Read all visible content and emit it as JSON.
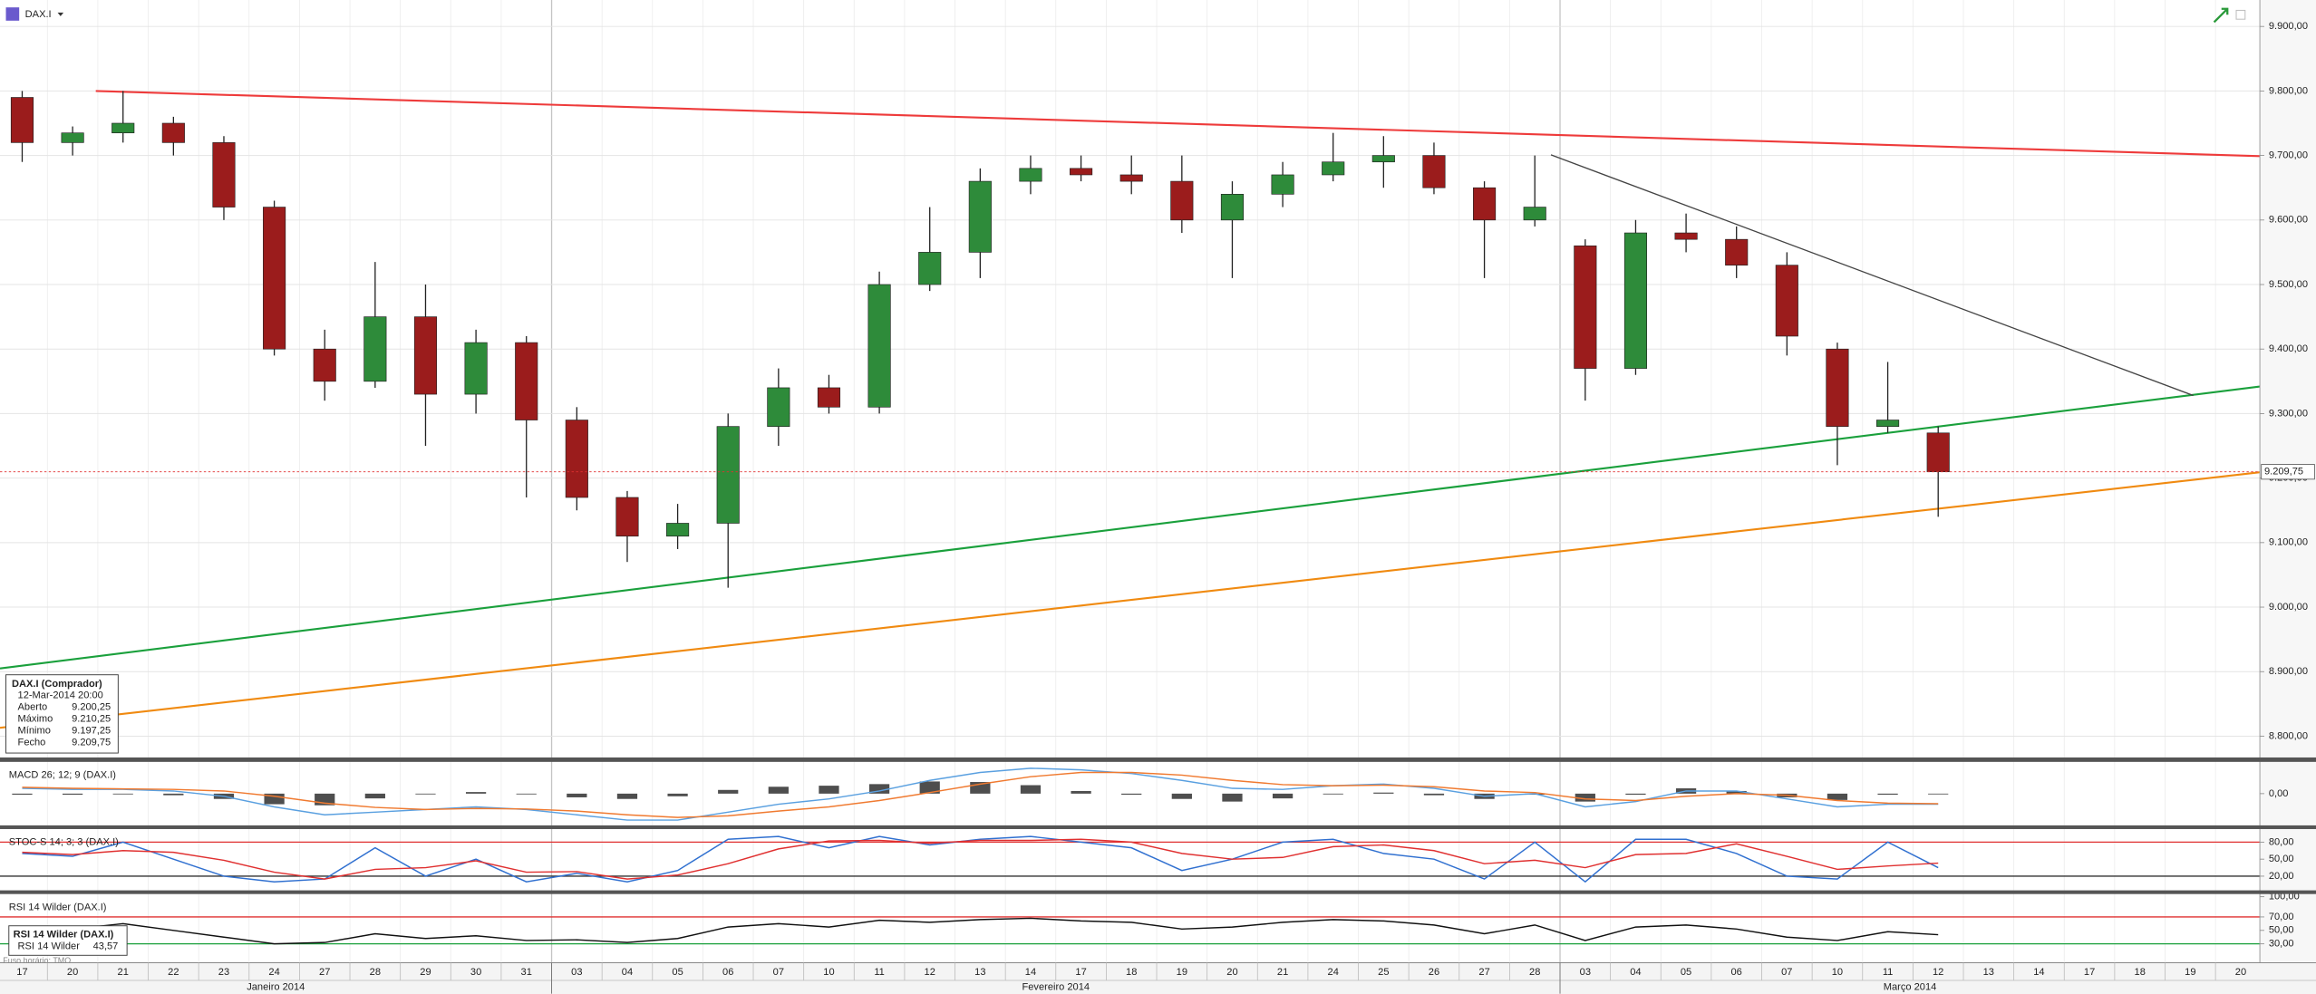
{
  "header": {
    "symbol": "DAX.I",
    "timezone": "Fuso horário: TMO"
  },
  "chart_data": [
    {
      "type": "candlestick",
      "panel": "main",
      "xlim": [
        -0.44,
        44.38
      ],
      "ylim": [
        8767,
        9941
      ],
      "categories": [
        "17",
        "20",
        "21",
        "22",
        "23",
        "24",
        "27",
        "28",
        "29",
        "30",
        "31",
        "03",
        "04",
        "05",
        "06",
        "07",
        "10",
        "11",
        "12",
        "13",
        "14",
        "17",
        "18",
        "19",
        "20",
        "21",
        "24",
        "25",
        "26",
        "27",
        "28",
        "03",
        "04",
        "05",
        "06",
        "07",
        "10",
        "11",
        "12",
        "13",
        "14",
        "17",
        "18",
        "19",
        "20"
      ],
      "months": [
        {
          "name": "Janeiro 2014",
          "start": 0
        },
        {
          "name": "Fevereiro 2014",
          "start": 11
        },
        {
          "name": "Março 2014",
          "start": 31
        }
      ],
      "up_color": "#2e8b3a",
      "down_color": "#9b1c1c",
      "grid": true,
      "open": [
        9790,
        9720,
        9735,
        9750,
        9720,
        9620,
        9400,
        9350,
        9450,
        9330,
        9410,
        9290,
        9170,
        9110,
        9130,
        9280,
        9340,
        9310,
        9500,
        9550,
        9660,
        9680,
        9670,
        9660,
        9600,
        9640,
        9670,
        9690,
        9700,
        9650,
        9600,
        9560,
        9370,
        9580,
        9570,
        9530,
        9400,
        9280,
        9270,
        null,
        null,
        null,
        null,
        null,
        null
      ],
      "high": [
        9800,
        9745,
        9800,
        9760,
        9730,
        9630,
        9430,
        9535,
        9500,
        9430,
        9420,
        9310,
        9180,
        9160,
        9300,
        9370,
        9360,
        9520,
        9620,
        9680,
        9700,
        9700,
        9700,
        9700,
        9660,
        9690,
        9735,
        9730,
        9720,
        9660,
        9700,
        9570,
        9600,
        9610,
        9590,
        9550,
        9410,
        9380,
        9280,
        null,
        null,
        null,
        null,
        null,
        null
      ],
      "low": [
        9690,
        9700,
        9720,
        9700,
        9600,
        9390,
        9320,
        9340,
        9250,
        9300,
        9170,
        9150,
        9070,
        9090,
        9030,
        9250,
        9300,
        9300,
        9490,
        9510,
        9640,
        9660,
        9640,
        9580,
        9510,
        9620,
        9660,
        9650,
        9640,
        9510,
        9590,
        9320,
        9360,
        9550,
        9510,
        9390,
        9220,
        9270,
        9140,
        null,
        null,
        null,
        null,
        null,
        null
      ],
      "close": [
        9720,
        9735,
        9750,
        9720,
        9620,
        9400,
        9350,
        9450,
        9330,
        9410,
        9290,
        9170,
        9110,
        9130,
        9280,
        9340,
        9310,
        9500,
        9550,
        9660,
        9680,
        9670,
        9660,
        9600,
        9640,
        9670,
        9690,
        9700,
        9650,
        9600,
        9620,
        9370,
        9580,
        9570,
        9530,
        9420,
        9280,
        9290,
        9209.75,
        null,
        null,
        null,
        null,
        null,
        null
      ],
      "yticks": [
        {
          "value": 8800,
          "label": "8.800,00"
        },
        {
          "value": 8900,
          "label": "8.900,00"
        },
        {
          "value": 9000,
          "label": "9.000,00"
        },
        {
          "value": 9100,
          "label": "9.100,00"
        },
        {
          "value": 9200,
          "label": "9.200,00"
        },
        {
          "value": 9300,
          "label": "9.300,00"
        },
        {
          "value": 9400,
          "label": "9.400,00"
        },
        {
          "value": 9500,
          "label": "9.500,00"
        },
        {
          "value": 9600,
          "label": "9.600,00"
        },
        {
          "value": 9700,
          "label": "9.700,00"
        },
        {
          "value": 9800,
          "label": "9.800,00"
        },
        {
          "value": 9900,
          "label": "9.900,00"
        }
      ],
      "last_price": {
        "value": 9209.75,
        "label": "9.209,75",
        "color": "#e03030"
      },
      "trendlines": [
        {
          "color": "#ee3b3b",
          "x": [
            1.46,
            44.38
          ],
          "y": [
            9800,
            9699
          ]
        },
        {
          "color": "#1aa03c",
          "x": [
            -0.44,
            44.38
          ],
          "y": [
            8905,
            9342
          ]
        },
        {
          "color": "#f08a10",
          "x": [
            -0.44,
            44.38
          ],
          "y": [
            8813,
            9209
          ]
        },
        {
          "color": "#444444",
          "x": [
            30.32,
            43.06
          ],
          "y": [
            9701,
            9328
          ]
        }
      ],
      "info": {
        "title": "DAX.I (Comprador)",
        "time": "12-Mar-2014 20:00",
        "rows": [
          [
            "Aberto",
            "9.200,25"
          ],
          [
            "Máximo",
            "9.210,25"
          ],
          [
            "Mínimo",
            "9.197,25"
          ],
          [
            "Fecho",
            "9.209,75"
          ]
        ]
      }
    },
    {
      "type": "macd",
      "panel": "macd",
      "title": "MACD 26; 12; 9 (DAX.I)",
      "ylim": [
        -60,
        60
      ],
      "yticks": [
        {
          "value": 0,
          "label": "0,00"
        }
      ],
      "histogram": {
        "color": "#222222",
        "values": [
          -2,
          -2,
          -1,
          -3,
          -10,
          -20,
          -22,
          -9,
          0,
          3,
          -1,
          -7,
          -10,
          -5,
          7,
          13,
          15,
          18,
          23,
          22,
          16,
          5,
          -2,
          -10,
          -15,
          -9,
          0,
          2,
          -3,
          -10,
          -2,
          -15,
          -2,
          10,
          5,
          -7,
          -12,
          -2,
          -1,
          null,
          null,
          null,
          null,
          null,
          null
        ]
      },
      "series": [
        {
          "color": "#5aa0e0",
          "values": [
            10,
            8,
            8,
            5,
            -5,
            -25,
            -40,
            -35,
            -30,
            -25,
            -30,
            -40,
            -50,
            -50,
            -35,
            -20,
            -10,
            5,
            25,
            40,
            48,
            45,
            38,
            25,
            10,
            8,
            15,
            18,
            10,
            -5,
            0,
            -25,
            -15,
            5,
            5,
            -10,
            -25,
            -20,
            -20,
            null,
            null,
            null,
            null,
            null,
            null
          ]
        },
        {
          "color": "#f07a30",
          "values": [
            12,
            10,
            9,
            8,
            5,
            -5,
            -18,
            -26,
            -30,
            -28,
            -29,
            -33,
            -40,
            -45,
            -42,
            -33,
            -25,
            -13,
            2,
            18,
            32,
            40,
            40,
            35,
            25,
            17,
            15,
            16,
            13,
            5,
            2,
            -10,
            -13,
            -5,
            0,
            -3,
            -13,
            -18,
            -19,
            null,
            null,
            null,
            null,
            null,
            null
          ]
        }
      ]
    },
    {
      "type": "stochastic",
      "panel": "stoch",
      "title": "STOC-S 14; 3; 3 (DAX.I)",
      "ylim": [
        -5,
        103
      ],
      "yticks": [
        {
          "value": 20,
          "label": "20,00"
        },
        {
          "value": 50,
          "label": "50,00"
        },
        {
          "value": 80,
          "label": "80,00"
        }
      ],
      "levels": [
        {
          "value": 80,
          "color": "#e03030"
        },
        {
          "value": 20,
          "color": "#333333"
        }
      ],
      "series": [
        {
          "color": "#3070d0",
          "values": [
            60,
            55,
            80,
            50,
            20,
            10,
            15,
            70,
            20,
            50,
            10,
            25,
            10,
            30,
            85,
            90,
            70,
            90,
            75,
            85,
            90,
            80,
            70,
            30,
            50,
            80,
            85,
            60,
            50,
            15,
            80,
            10,
            85,
            85,
            60,
            20,
            15,
            80,
            35,
            null,
            null,
            null,
            null,
            null,
            null
          ]
        },
        {
          "color": "#e03030",
          "values": [
            62,
            58,
            65,
            62,
            48,
            27,
            15,
            32,
            35,
            47,
            27,
            28,
            15,
            22,
            42,
            68,
            82,
            83,
            78,
            83,
            83,
            85,
            80,
            60,
            50,
            53,
            72,
            75,
            65,
            42,
            48,
            35,
            58,
            60,
            77,
            55,
            32,
            38,
            43,
            null,
            null,
            null,
            null,
            null,
            null
          ]
        }
      ]
    },
    {
      "type": "rsi",
      "panel": "rsi",
      "title": "RSI 14 Wilder (DAX.I)",
      "ylim": [
        2,
        104
      ],
      "yticks": [
        {
          "value": 30,
          "label": "30,00"
        },
        {
          "value": 50,
          "label": "50,00"
        },
        {
          "value": 70,
          "label": "70,00"
        },
        {
          "value": 100,
          "label": "100,00"
        }
      ],
      "levels": [
        {
          "value": 70,
          "color": "#e03030"
        },
        {
          "value": 30,
          "color": "#1aa03c"
        }
      ],
      "legend": {
        "title": "RSI 14 Wilder (DAX.I)",
        "name": "RSI 14 Wilder",
        "value": "43,57"
      },
      "series": [
        {
          "color": "#111111",
          "values": [
            55,
            52,
            60,
            50,
            40,
            30,
            32,
            45,
            38,
            42,
            35,
            36,
            32,
            38,
            55,
            60,
            55,
            65,
            62,
            66,
            68,
            64,
            62,
            52,
            55,
            62,
            66,
            64,
            58,
            45,
            58,
            35,
            55,
            58,
            52,
            40,
            35,
            48,
            43.57,
            null,
            null,
            null,
            null,
            null,
            null
          ]
        }
      ]
    }
  ]
}
